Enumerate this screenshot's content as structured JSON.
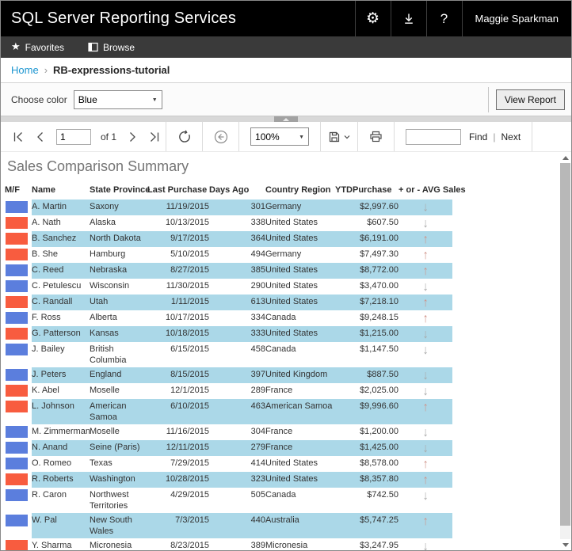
{
  "app": {
    "title": "SQL Server Reporting Services",
    "user_name": "Maggie Sparkman",
    "help_label": "?"
  },
  "nav": {
    "favorites_label": "Favorites",
    "browse_label": "Browse"
  },
  "breadcrumb": {
    "home": "Home",
    "separator": "›",
    "current": "RB-expressions-tutorial"
  },
  "params": {
    "label": "Choose color",
    "color_value": "Blue",
    "view_report_label": "View Report"
  },
  "toolbar": {
    "page_value": "1",
    "of_label": "of 1",
    "zoom_value": "100%",
    "find_value": "",
    "find_label": "Find",
    "pipe": "|",
    "next_label": "Next"
  },
  "report": {
    "title": "Sales Comparison Summary",
    "table": {
      "columns": [
        {
          "key": "mf",
          "label": "M/F"
        },
        {
          "key": "name",
          "label": "Name"
        },
        {
          "key": "state",
          "label": "State Province"
        },
        {
          "key": "last_purchase",
          "label": "Last Purchase"
        },
        {
          "key": "days_ago",
          "label": "Days Ago"
        },
        {
          "key": "country",
          "label": "Country Region"
        },
        {
          "key": "ytd",
          "label": "YTDPurchase"
        },
        {
          "key": "trend",
          "label": "+ or - AVG Sales"
        }
      ],
      "rows": [
        {
          "mf": "blue",
          "name": "A. Martin",
          "state": "Saxony",
          "last_purchase": "11/19/2015",
          "days_ago": "301",
          "country": "Germany",
          "ytd": "$2,997.60",
          "trend": "down",
          "highlight": true
        },
        {
          "mf": "red",
          "name": "A. Nath",
          "state": "Alaska",
          "last_purchase": "10/13/2015",
          "days_ago": "338",
          "country": "United States",
          "ytd": "$607.50",
          "trend": "down",
          "highlight": false
        },
        {
          "mf": "red",
          "name": "B. Sanchez",
          "state": "North Dakota",
          "last_purchase": "9/17/2015",
          "days_ago": "364",
          "country": "United States",
          "ytd": "$6,191.00",
          "trend": "up",
          "highlight": true
        },
        {
          "mf": "red",
          "name": "B. She",
          "state": "Hamburg",
          "last_purchase": "5/10/2015",
          "days_ago": "494",
          "country": "Germany",
          "ytd": "$7,497.30",
          "trend": "up",
          "highlight": false
        },
        {
          "mf": "blue",
          "name": "C. Reed",
          "state": "Nebraska",
          "last_purchase": "8/27/2015",
          "days_ago": "385",
          "country": "United States",
          "ytd": "$8,772.00",
          "trend": "up",
          "highlight": true
        },
        {
          "mf": "blue",
          "name": "C. Petulescu",
          "state": "Wisconsin",
          "last_purchase": "11/30/2015",
          "days_ago": "290",
          "country": "United States",
          "ytd": "$3,470.00",
          "trend": "down",
          "highlight": false
        },
        {
          "mf": "red",
          "name": "C. Randall",
          "state": "Utah",
          "last_purchase": "1/11/2015",
          "days_ago": "613",
          "country": "United States",
          "ytd": "$7,218.10",
          "trend": "up",
          "highlight": true
        },
        {
          "mf": "blue",
          "name": "F. Ross",
          "state": "Alberta",
          "last_purchase": "10/17/2015",
          "days_ago": "334",
          "country": "Canada",
          "ytd": "$9,248.15",
          "trend": "up",
          "highlight": false
        },
        {
          "mf": "red",
          "name": "G. Patterson",
          "state": "Kansas",
          "last_purchase": "10/18/2015",
          "days_ago": "333",
          "country": "United States",
          "ytd": "$1,215.00",
          "trend": "down",
          "highlight": true
        },
        {
          "mf": "blue",
          "name": "J. Bailey",
          "state": "British Columbia",
          "last_purchase": "6/15/2015",
          "days_ago": "458",
          "country": "Canada",
          "ytd": "$1,147.50",
          "trend": "down",
          "highlight": false
        },
        {
          "mf": "blue",
          "name": "J. Peters",
          "state": "England",
          "last_purchase": "8/15/2015",
          "days_ago": "397",
          "country": "United Kingdom",
          "ytd": "$887.50",
          "trend": "down",
          "highlight": true
        },
        {
          "mf": "red",
          "name": "K. Abel",
          "state": "Moselle",
          "last_purchase": "12/1/2015",
          "days_ago": "289",
          "country": "France",
          "ytd": "$2,025.00",
          "trend": "down",
          "highlight": false
        },
        {
          "mf": "red",
          "name": "L. Johnson",
          "state": "American Samoa",
          "last_purchase": "6/10/2015",
          "days_ago": "463",
          "country": "American Samoa",
          "ytd": "$9,996.60",
          "trend": "up",
          "highlight": true
        },
        {
          "mf": "blue",
          "name": "M. Zimmerman",
          "state": "Moselle",
          "last_purchase": "11/16/2015",
          "days_ago": "304",
          "country": "France",
          "ytd": "$1,200.00",
          "trend": "down",
          "highlight": false
        },
        {
          "mf": "blue",
          "name": "N. Anand",
          "state": "Seine (Paris)",
          "last_purchase": "12/11/2015",
          "days_ago": "279",
          "country": "France",
          "ytd": "$1,425.00",
          "trend": "down",
          "highlight": true
        },
        {
          "mf": "blue",
          "name": "O. Romeo",
          "state": "Texas",
          "last_purchase": "7/29/2015",
          "days_ago": "414",
          "country": "United States",
          "ytd": "$8,578.00",
          "trend": "up",
          "highlight": false
        },
        {
          "mf": "red",
          "name": "R. Roberts",
          "state": "Washington",
          "last_purchase": "10/28/2015",
          "days_ago": "323",
          "country": "United States",
          "ytd": "$8,357.80",
          "trend": "up",
          "highlight": true
        },
        {
          "mf": "blue",
          "name": "R. Caron",
          "state": "Northwest Territories",
          "last_purchase": "4/29/2015",
          "days_ago": "505",
          "country": "Canada",
          "ytd": "$742.50",
          "trend": "down",
          "highlight": false
        },
        {
          "mf": "blue",
          "name": "W. Pal",
          "state": "New South Wales",
          "last_purchase": "7/3/2015",
          "days_ago": "440",
          "country": "Australia",
          "ytd": "$5,747.25",
          "trend": "up",
          "highlight": true
        },
        {
          "mf": "red",
          "name": "Y. Sharma",
          "state": "Micronesia",
          "last_purchase": "8/23/2015",
          "days_ago": "389",
          "country": "Micronesia",
          "ytd": "$3,247.95",
          "trend": "down",
          "highlight": false
        }
      ]
    }
  },
  "colors": {
    "blue": "#5b7edd",
    "red": "#f85c3f",
    "row_highlight": "#abd8e8",
    "link_blue": "#1b95d0",
    "up_arrow": "#cf9288",
    "down_arrow": "#a8a8a8"
  }
}
